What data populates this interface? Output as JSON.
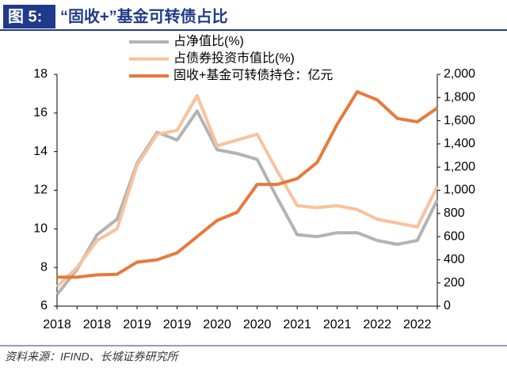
{
  "header": {
    "label": "图 5:"
  },
  "chart_data": {
    "type": "line",
    "title": "“固收+”基金可转债占比",
    "source": "资料来源：IFIND、长城证券研究所",
    "categories": [
      "2018",
      null,
      "2018",
      null,
      "2019",
      null,
      "2019",
      null,
      "2020",
      null,
      "2020",
      null,
      "2021",
      null,
      "2021",
      null,
      "2022",
      null,
      "2022",
      null
    ],
    "ylim": [
      6,
      18
    ],
    "yticks": [
      6,
      8,
      10,
      12,
      14,
      16,
      18
    ],
    "y2lim": [
      0,
      2000
    ],
    "y2ticks": [
      0,
      200,
      400,
      600,
      800,
      {
        "value": 1000,
        "label": "1,000"
      },
      {
        "value": 1200,
        "label": "1,200"
      },
      {
        "value": 1400,
        "label": "1,400"
      },
      {
        "value": 1600,
        "label": "1,600"
      },
      {
        "value": 1800,
        "label": "1,800"
      },
      {
        "value": 2000,
        "label": "2,000"
      }
    ],
    "series": [
      {
        "name": "占净值比(%)",
        "color": "#b3b3b3",
        "values": [
          6.6,
          7.9,
          9.7,
          10.5,
          13.4,
          15.0,
          14.6,
          16.1,
          14.1,
          13.9,
          13.6,
          11.6,
          9.7,
          9.6,
          9.8,
          9.8,
          9.4,
          9.2,
          9.4,
          11.5
        ]
      },
      {
        "name": "占债券投资市值比(%)",
        "color": "#f8c29c",
        "values": [
          7.0,
          8.0,
          9.4,
          10.0,
          13.3,
          14.9,
          15.1,
          16.9,
          14.3,
          14.6,
          14.9,
          13.0,
          11.2,
          11.1,
          11.2,
          11.0,
          10.5,
          10.3,
          10.1,
          12.2
        ]
      },
      {
        "name": "固收+基金可转债持仓：亿元",
        "color": "#e8793a",
        "axis": "y2",
        "values": [
          250,
          250,
          270,
          275,
          380,
          400,
          460,
          600,
          740,
          810,
          1050,
          1050,
          1100,
          1240,
          1570,
          1850,
          1780,
          1620,
          1590,
          1710
        ]
      }
    ]
  }
}
